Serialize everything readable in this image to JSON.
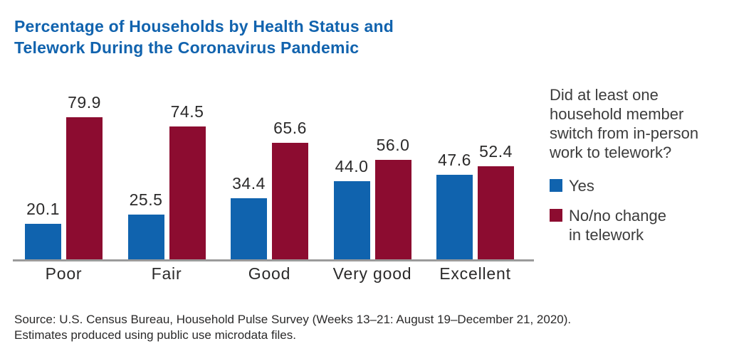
{
  "title": "Percentage of Households by Health Status and Telework During the Coronavirus Pandemic",
  "colors": {
    "title_blue": "#1163ae",
    "series_yes_blue": "#1063ae",
    "series_no_maroon": "#8c0c30",
    "axis_gray": "#9b9b9b",
    "text_dark": "#2b2a2a"
  },
  "legend": {
    "question": "Did at least one household member switch from in-person work to telework?",
    "items": [
      {
        "label": "Yes",
        "color": "#1063ae"
      },
      {
        "label": "No/no change in telework",
        "color": "#8c0c30"
      }
    ]
  },
  "source": {
    "line1": "Source: U.S. Census Bureau, Household Pulse Survey (Weeks 13–21: August 19–December 21, 2020).",
    "line2": "Estimates produced using public use microdata files."
  },
  "chart_data": {
    "type": "bar",
    "title": "Percentage of Households by Health Status and Telework During the Coronavirus Pandemic",
    "categories": [
      "Poor",
      "Fair",
      "Good",
      "Very good",
      "Excellent"
    ],
    "series": [
      {
        "name": "Yes",
        "color": "#1063ae",
        "values": [
          20.1,
          25.5,
          34.4,
          44.0,
          47.6
        ]
      },
      {
        "name": "No/no change in telework",
        "color": "#8c0c30",
        "values": [
          79.9,
          74.5,
          65.6,
          56.0,
          52.4
        ]
      }
    ],
    "xlabel": "",
    "ylabel": "",
    "ylim": [
      0,
      100
    ],
    "grid": false,
    "value_labels": true,
    "value_label_decimals": 1,
    "legend_position": "right"
  }
}
